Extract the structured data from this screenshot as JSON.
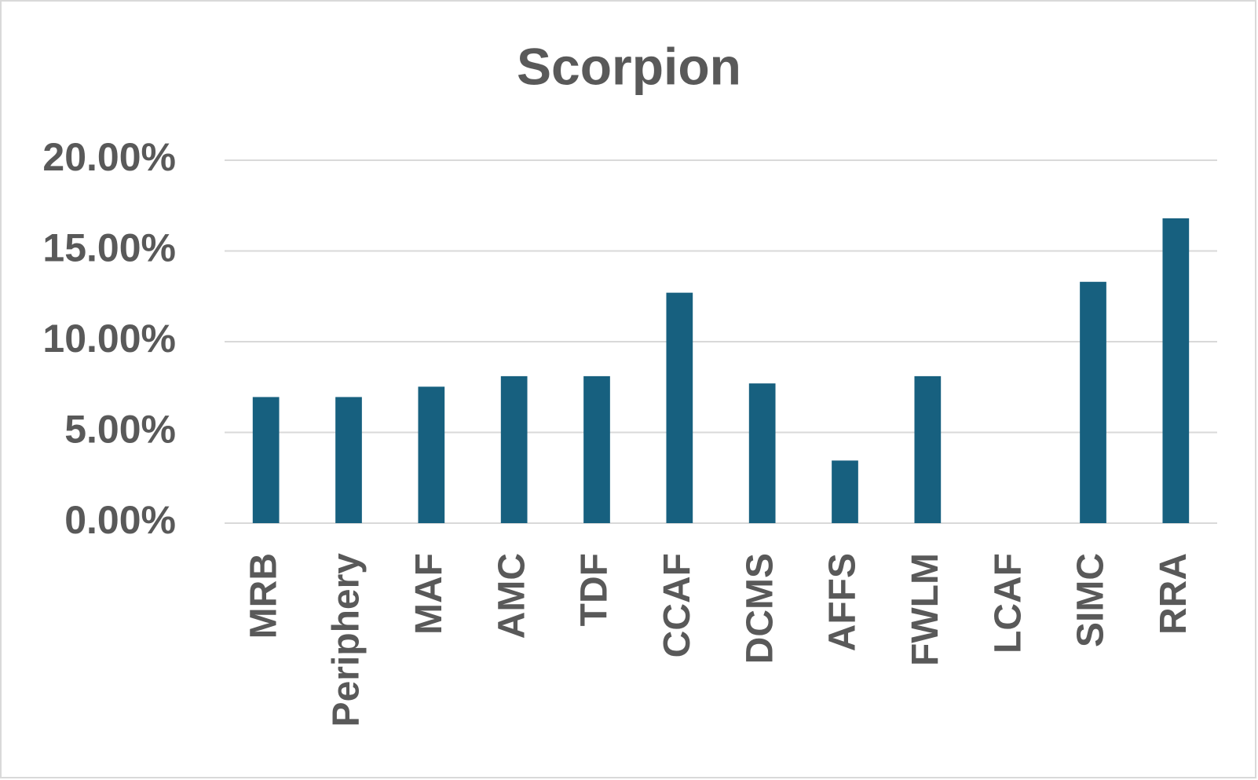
{
  "chart_data": {
    "type": "bar",
    "title": "Scorpion",
    "categories": [
      "MRB",
      "Periphery",
      "MAF",
      "AMC",
      "TDF",
      "CCAF",
      "DCMS",
      "AFFS",
      "FWLM",
      "LCAF",
      "SIMC",
      "RRA"
    ],
    "values": [
      6.95,
      6.95,
      7.52,
      8.1,
      8.1,
      12.7,
      7.7,
      3.45,
      8.1,
      0,
      13.3,
      16.8
    ],
    "color": "#17607f",
    "ylim": [
      0,
      20
    ],
    "yticks": [
      {
        "value": 0,
        "label": "0.00%"
      },
      {
        "value": 5,
        "label": "5.00%"
      },
      {
        "value": 10,
        "label": "10.00%"
      },
      {
        "value": 15,
        "label": "15.00%"
      },
      {
        "value": 20,
        "label": "20.00%"
      }
    ],
    "grid": true
  }
}
